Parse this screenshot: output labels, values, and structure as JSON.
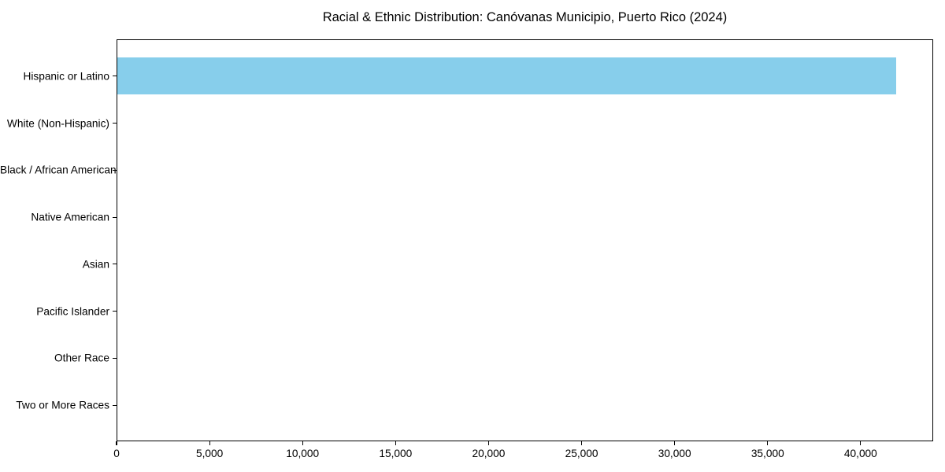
{
  "chart_data": {
    "type": "bar",
    "orientation": "horizontal",
    "title": "Racial & Ethnic Distribution: Canóvanas Municipio, Puerto Rico (2024)",
    "categories": [
      "Hispanic or Latino",
      "White (Non-Hispanic)",
      "Black / African American",
      "Native American",
      "Asian",
      "Pacific Islander",
      "Other Race",
      "Two or More Races"
    ],
    "values": [
      41850,
      0,
      0,
      0,
      0,
      0,
      0,
      0
    ],
    "xlabel": "",
    "ylabel": "",
    "xlim": [
      0,
      43900
    ],
    "x_ticks": [
      0,
      5000,
      10000,
      15000,
      20000,
      25000,
      30000,
      35000,
      40000
    ],
    "x_tick_labels": [
      "0",
      "5,000",
      "10,000",
      "15,000",
      "20,000",
      "25,000",
      "30,000",
      "35,000",
      "40,000"
    ],
    "bar_color": "#87CEEB",
    "axis_color": "#000000",
    "text_color": "#000000",
    "background_color": "#FFFFFF",
    "grid": false,
    "legend": null
  }
}
